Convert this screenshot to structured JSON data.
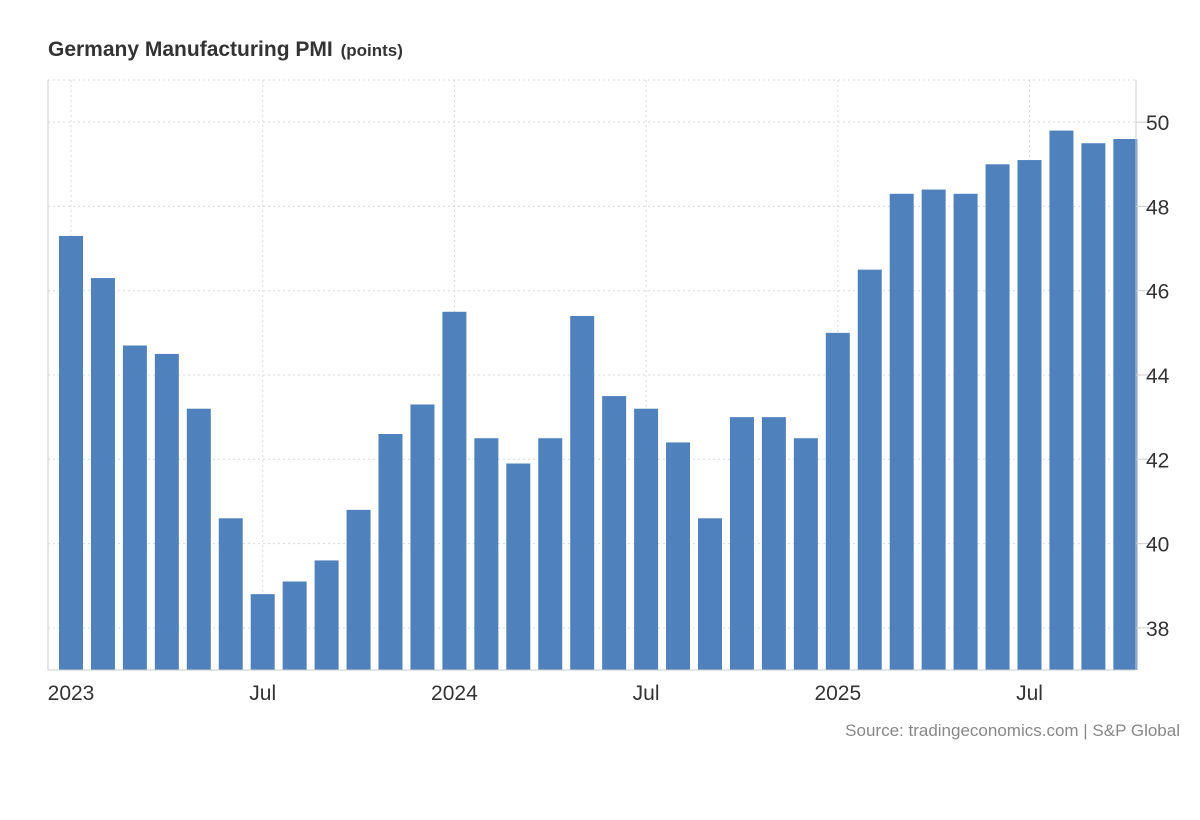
{
  "title": "Germany Manufacturing PMI",
  "unit": "(points)",
  "source": "Source: tradingeconomics.com | S&P Global",
  "chart_data": {
    "type": "bar",
    "title": "Germany Manufacturing PMI",
    "ylabel": "",
    "xlabel": "",
    "ylim": [
      37,
      51
    ],
    "yticks": [
      38,
      40,
      42,
      44,
      46,
      48,
      50
    ],
    "x_tick_labels": [
      {
        "label": "2023",
        "index": 0
      },
      {
        "label": "Jul",
        "index": 6
      },
      {
        "label": "2024",
        "index": 12
      },
      {
        "label": "Jul",
        "index": 18
      },
      {
        "label": "2025",
        "index": 24
      },
      {
        "label": "Jul",
        "index": 30
      }
    ],
    "grid": true,
    "y_axis_side": "right",
    "bar_color": "#4f81bd",
    "categories": [
      "Jan 2023",
      "Feb 2023",
      "Mar 2023",
      "Apr 2023",
      "May 2023",
      "Jun 2023",
      "Jul 2023",
      "Aug 2023",
      "Sep 2023",
      "Oct 2023",
      "Nov 2023",
      "Dec 2023",
      "Jan 2024",
      "Feb 2024",
      "Mar 2024",
      "Apr 2024",
      "May 2024",
      "Jun 2024",
      "Jul 2024",
      "Aug 2024",
      "Sep 2024",
      "Oct 2024",
      "Nov 2024",
      "Dec 2024",
      "Jan 2025",
      "Feb 2025",
      "Mar 2025",
      "Apr 2025",
      "May 2025",
      "Jun 2025",
      "Jul 2025",
      "Aug 2025",
      "Sep 2025",
      "Oct 2025"
    ],
    "values": [
      47.3,
      46.3,
      44.7,
      44.5,
      43.2,
      40.6,
      38.8,
      39.1,
      39.6,
      40.8,
      42.6,
      43.3,
      45.5,
      42.5,
      41.9,
      42.5,
      45.4,
      43.5,
      43.2,
      42.4,
      40.6,
      43.0,
      43.0,
      42.5,
      45.0,
      46.5,
      48.3,
      48.4,
      48.3,
      49.0,
      49.1,
      49.8,
      49.5,
      49.6
    ]
  }
}
